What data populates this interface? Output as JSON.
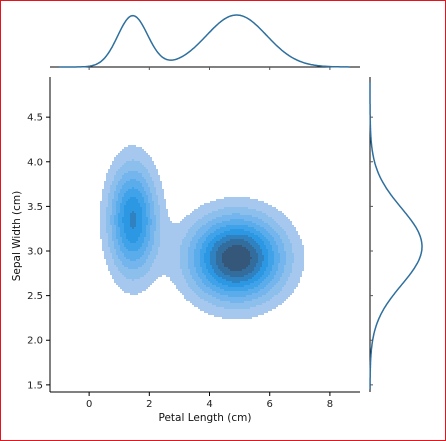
{
  "chart_data": {
    "type": "kde-joint",
    "xlabel": "Petal Length (cm)",
    "ylabel": "Sepal Width (cm)",
    "xlim": [
      -1.3,
      9.0
    ],
    "ylim": [
      1.42,
      4.95
    ],
    "xticks": [
      {
        "value": 0,
        "label": "0"
      },
      {
        "value": 2,
        "label": "2"
      },
      {
        "value": 4,
        "label": "4"
      },
      {
        "value": 6,
        "label": "6"
      },
      {
        "value": 8,
        "label": "8"
      }
    ],
    "yticks": [
      {
        "value": 1.5,
        "label": "1.5"
      },
      {
        "value": 2.0,
        "label": "2.0"
      },
      {
        "value": 2.5,
        "label": "2.5"
      },
      {
        "value": 3.0,
        "label": "3.0"
      },
      {
        "value": 3.5,
        "label": "3.5"
      },
      {
        "value": 4.0,
        "label": "4.0"
      },
      {
        "value": 4.5,
        "label": "4.5"
      }
    ],
    "joint_components": [
      {
        "mx": 1.45,
        "my": 3.35,
        "sx": 0.55,
        "sy": 0.42,
        "w": 0.33
      },
      {
        "mx": 4.9,
        "my": 2.92,
        "sx": 1.05,
        "sy": 0.32,
        "w": 0.67
      }
    ],
    "marginal_x_components": [
      {
        "m": 1.45,
        "s": 0.5,
        "w": 0.33
      },
      {
        "m": 4.9,
        "s": 1.0,
        "w": 0.67
      }
    ],
    "marginal_y_components": [
      {
        "m": 3.05,
        "s": 0.43,
        "w": 1.0
      }
    ],
    "fill_levels": 9,
    "colors": {
      "fill_low": "#a7c8ee",
      "fill_mid": "#2b9be9",
      "fill_high": "#35587a",
      "marginal_line": "#2e6f9e",
      "axis": "#000000",
      "border": "#e2141e"
    }
  }
}
